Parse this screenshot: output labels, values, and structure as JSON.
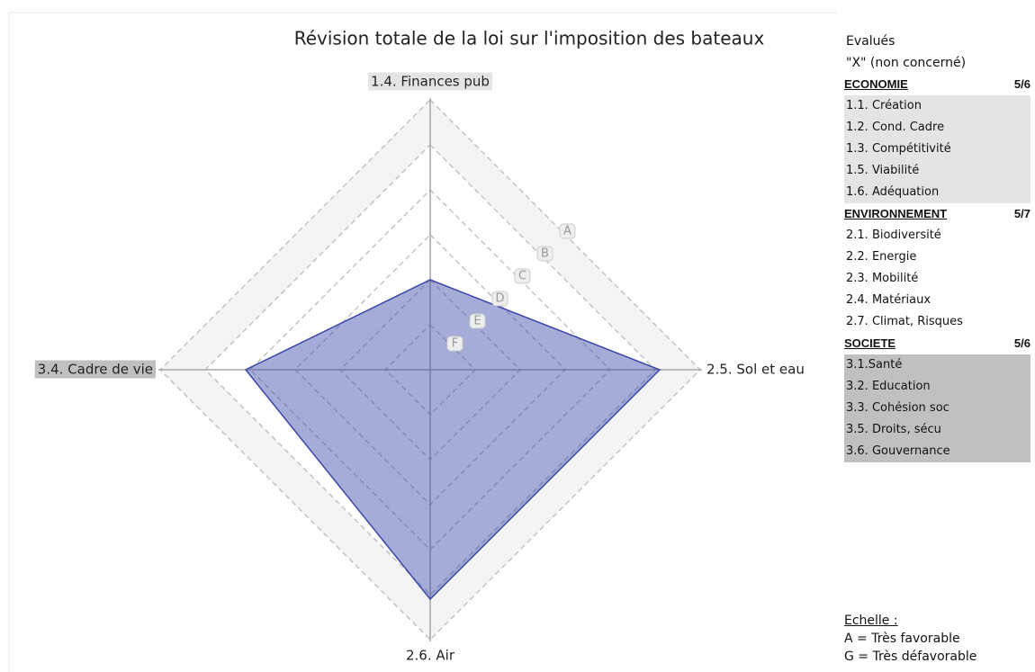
{
  "chart_data": {
    "type": "radar",
    "title": "Révision totale de la loi sur l'imposition des bateaux",
    "categories": [
      "1.4. Finances pub",
      "2.5. Sol et eau",
      "2.6. Air",
      "3.4. Cadre de vie"
    ],
    "series": [
      {
        "color": "#3a46a8",
        "values": [
          2,
          5.1,
          5.1,
          4.1
        ]
      }
    ],
    "ylim": [
      0,
      6
    ],
    "yticks": [
      {
        "value": 6,
        "label": "A"
      },
      {
        "value": 5,
        "label": "B"
      },
      {
        "value": 4,
        "label": "C"
      },
      {
        "value": 3,
        "label": "D"
      },
      {
        "value": 2,
        "label": "E"
      },
      {
        "value": 1,
        "label": "F"
      }
    ],
    "grid": true
  },
  "panel": {
    "evaluated": "Evalués",
    "not_concerned": "\"X\" (non concerné)",
    "groups": [
      {
        "name": "ECONOMIE",
        "count": "5/6",
        "items": [
          "1.1. Création",
          "1.2. Cond. Cadre",
          "1.3. Compétitivité",
          "1.5. Viabilité",
          "1.6. Adéquation"
        ]
      },
      {
        "name": "ENVIRONNEMENT",
        "count": "5/7",
        "items": [
          "2.1. Biodiversité",
          "2.2. Energie",
          "2.3. Mobilité",
          "2.4. Matériaux",
          "2.7. Climat, Risques"
        ]
      },
      {
        "name": "SOCIETE",
        "count": "5/6",
        "items": [
          "3.1.Santé",
          "3.2. Education",
          "3.3. Cohésion soc",
          "3.5. Droits, sécu",
          "3.6. Gouvernance"
        ]
      }
    ],
    "scale_title": "Echelle :",
    "scale_lines": [
      "A = Très favorable",
      "G = Très défavorable"
    ]
  }
}
